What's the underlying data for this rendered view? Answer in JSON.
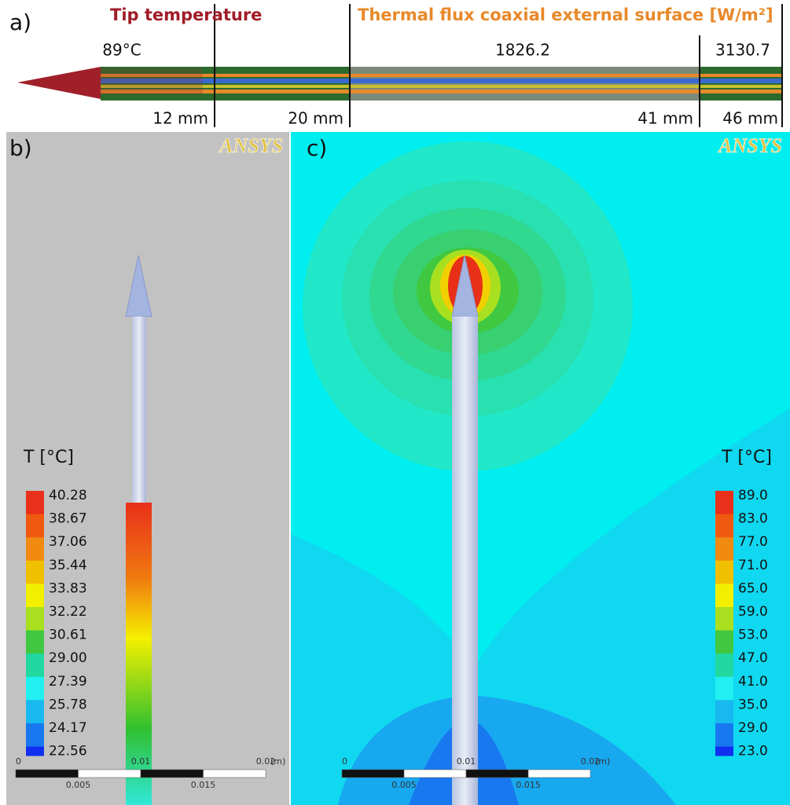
{
  "panel_a": {
    "label": "a)",
    "tip_title": "Tip temperature",
    "flux_title": "Thermal flux coaxial external surface [W/m²]",
    "tip_value": "89°C",
    "flux_values": [
      "1826.2",
      "3130.7"
    ],
    "lengths": [
      "12 mm",
      "20 mm",
      "41 mm",
      "46 mm"
    ]
  },
  "panel_b": {
    "label": "b)",
    "logo": "ANSYS",
    "legend_title": "T [°C]",
    "legend_values": [
      "40.28",
      "38.67",
      "37.06",
      "35.44",
      "33.83",
      "32.22",
      "30.61",
      "29.00",
      "27.39",
      "25.78",
      "24.17",
      "22.56"
    ],
    "scale_top": [
      "0",
      "0.01",
      "0.02",
      "(m)"
    ],
    "scale_bottom": [
      "0.005",
      "0.015"
    ]
  },
  "panel_c": {
    "label": "c)",
    "logo": "ANSYS",
    "legend_title": "T [°C]",
    "legend_values": [
      "89.0",
      "83.0",
      "77.0",
      "71.0",
      "65.0",
      "59.0",
      "53.0",
      "47.0",
      "41.0",
      "35.0",
      "29.0",
      "23.0"
    ],
    "scale_top": [
      "0",
      "0.01",
      "0.02",
      "(m)"
    ],
    "scale_bottom": [
      "0.005",
      "0.015"
    ]
  }
}
